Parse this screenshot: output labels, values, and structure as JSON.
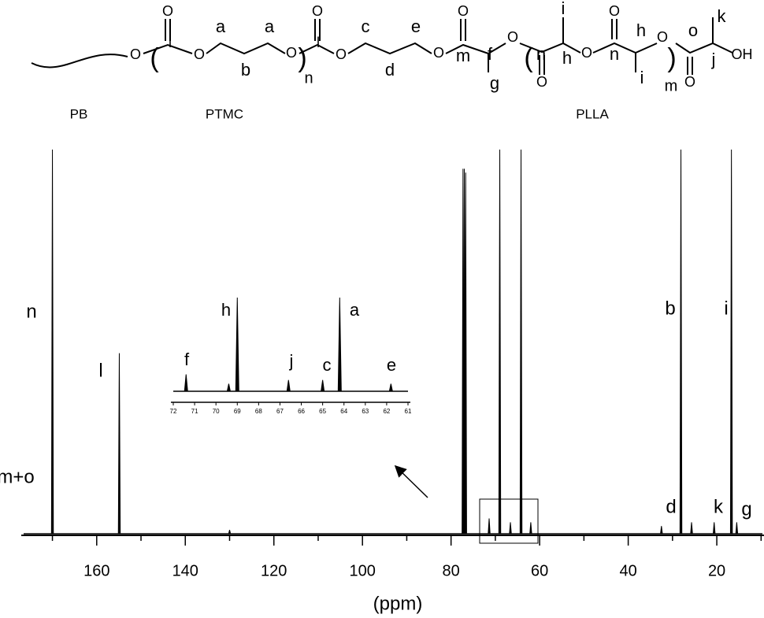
{
  "structure": {
    "labels": [
      "O",
      "(",
      "O",
      "l",
      "O",
      "a",
      "b",
      "a",
      "O",
      ")",
      "n",
      "O",
      "l",
      "O",
      "c",
      "d",
      "e",
      "O",
      "O",
      "m",
      "f",
      "g",
      "O",
      "(",
      "O",
      "n",
      "i",
      "h",
      "O",
      "O",
      "n",
      "h",
      "O",
      "i",
      ")",
      "m",
      "o",
      "O",
      "k",
      "j",
      "OH"
    ],
    "segments": [
      "PB",
      "PTMC",
      "PLLA"
    ]
  },
  "chart_data": [
    {
      "type": "spectrum",
      "x_label": "(ppm)",
      "xlim": [
        176.5,
        9.7
      ],
      "xticks": [
        160,
        140,
        120,
        100,
        80,
        60,
        40,
        20
      ],
      "xminorticks": [
        170,
        150,
        130,
        110,
        90,
        70,
        50,
        30,
        10
      ],
      "ylim": [
        0,
        100
      ],
      "x": [
        170.0,
        154.9,
        130.0,
        77.3,
        77.0,
        76.7,
        71.4,
        69.0,
        66.6,
        64.2,
        62.0,
        32.5,
        28.1,
        25.7,
        20.6,
        16.7,
        15.5
      ],
      "values": [
        100,
        47,
        1,
        95,
        95,
        94,
        4,
        100,
        3,
        100,
        3,
        2,
        100,
        3,
        3,
        100,
        3
      ],
      "color": "#000000",
      "annotations": [
        "n",
        "l",
        "m+o",
        "b",
        "i",
        "d",
        "k",
        "g"
      ]
    },
    {
      "type": "spectrum",
      "xlim": [
        72,
        61
      ],
      "xticks": [
        72,
        71,
        70,
        69,
        68,
        67,
        66,
        65,
        64,
        63,
        62,
        61
      ],
      "ylim": [
        0,
        100
      ],
      "x": [
        71.4,
        69.4,
        69.0,
        66.6,
        65.0,
        64.2,
        61.8
      ],
      "values": [
        18,
        8,
        100,
        12,
        12,
        100,
        8
      ],
      "color": "#000000",
      "annotations": [
        "f",
        "h",
        "j",
        "c",
        "a",
        "e"
      ]
    }
  ]
}
